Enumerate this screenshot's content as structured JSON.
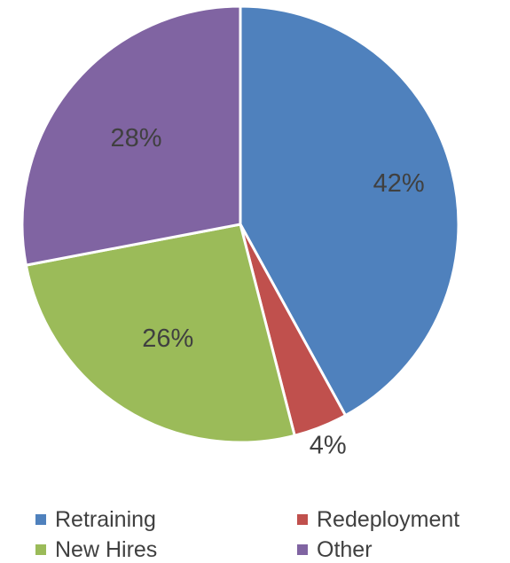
{
  "chart_data": {
    "type": "pie",
    "categories": [
      "Retraining",
      "Redeployment",
      "New Hires",
      "Other"
    ],
    "values": [
      42,
      4,
      26,
      28
    ],
    "value_labels": [
      "42%",
      "4%",
      "26%",
      "28%"
    ],
    "colors": [
      "#4f81bd",
      "#c0504d",
      "#9bbb59",
      "#8064a2"
    ],
    "title": "",
    "legend_position": "bottom",
    "start_angle": "12 o'clock",
    "direction": "clockwise"
  }
}
